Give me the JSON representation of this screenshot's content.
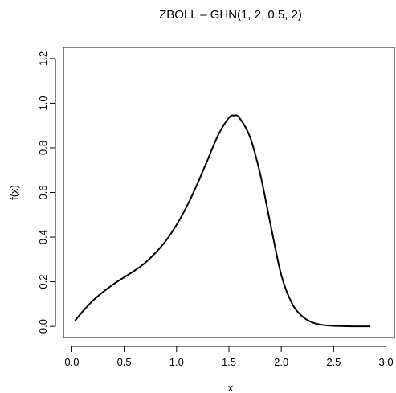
{
  "chart_data": {
    "type": "line",
    "title": "ZBOLL – GHN(1, 2, 0.5, 2)",
    "xlabel": "x",
    "ylabel": "f(x)",
    "xlim": [
      -0.08,
      3.08
    ],
    "ylim": [
      -0.05,
      1.25
    ],
    "x_ticks": [
      0.0,
      0.5,
      1.0,
      1.5,
      2.0,
      2.5,
      3.0
    ],
    "x_tick_labels": [
      "0.0",
      "0.5",
      "1.0",
      "1.5",
      "2.0",
      "2.5",
      "3.0"
    ],
    "y_ticks": [
      0.0,
      0.2,
      0.4,
      0.6,
      0.8,
      1.0,
      1.2
    ],
    "y_tick_labels": [
      "0.0",
      "0.2",
      "0.4",
      "0.6",
      "0.8",
      "1.0",
      "1.2"
    ],
    "grid": false,
    "legend": "none",
    "line_color": "#000000",
    "series": [
      {
        "x": [
          0.03,
          0.1,
          0.2,
          0.3,
          0.4,
          0.5,
          0.6,
          0.7,
          0.8,
          0.9,
          1.0,
          1.1,
          1.2,
          1.3,
          1.4,
          1.5,
          1.55,
          1.6,
          1.7,
          1.8,
          1.9,
          2.0,
          2.1,
          2.2,
          2.3,
          2.4,
          2.5,
          2.6,
          2.7,
          2.85
        ],
        "y": [
          0.025,
          0.065,
          0.115,
          0.155,
          0.19,
          0.22,
          0.25,
          0.285,
          0.33,
          0.385,
          0.455,
          0.54,
          0.64,
          0.75,
          0.86,
          0.935,
          0.945,
          0.935,
          0.85,
          0.68,
          0.45,
          0.23,
          0.105,
          0.045,
          0.017,
          0.006,
          0.002,
          0.001,
          0.0,
          0.0
        ]
      }
    ]
  }
}
